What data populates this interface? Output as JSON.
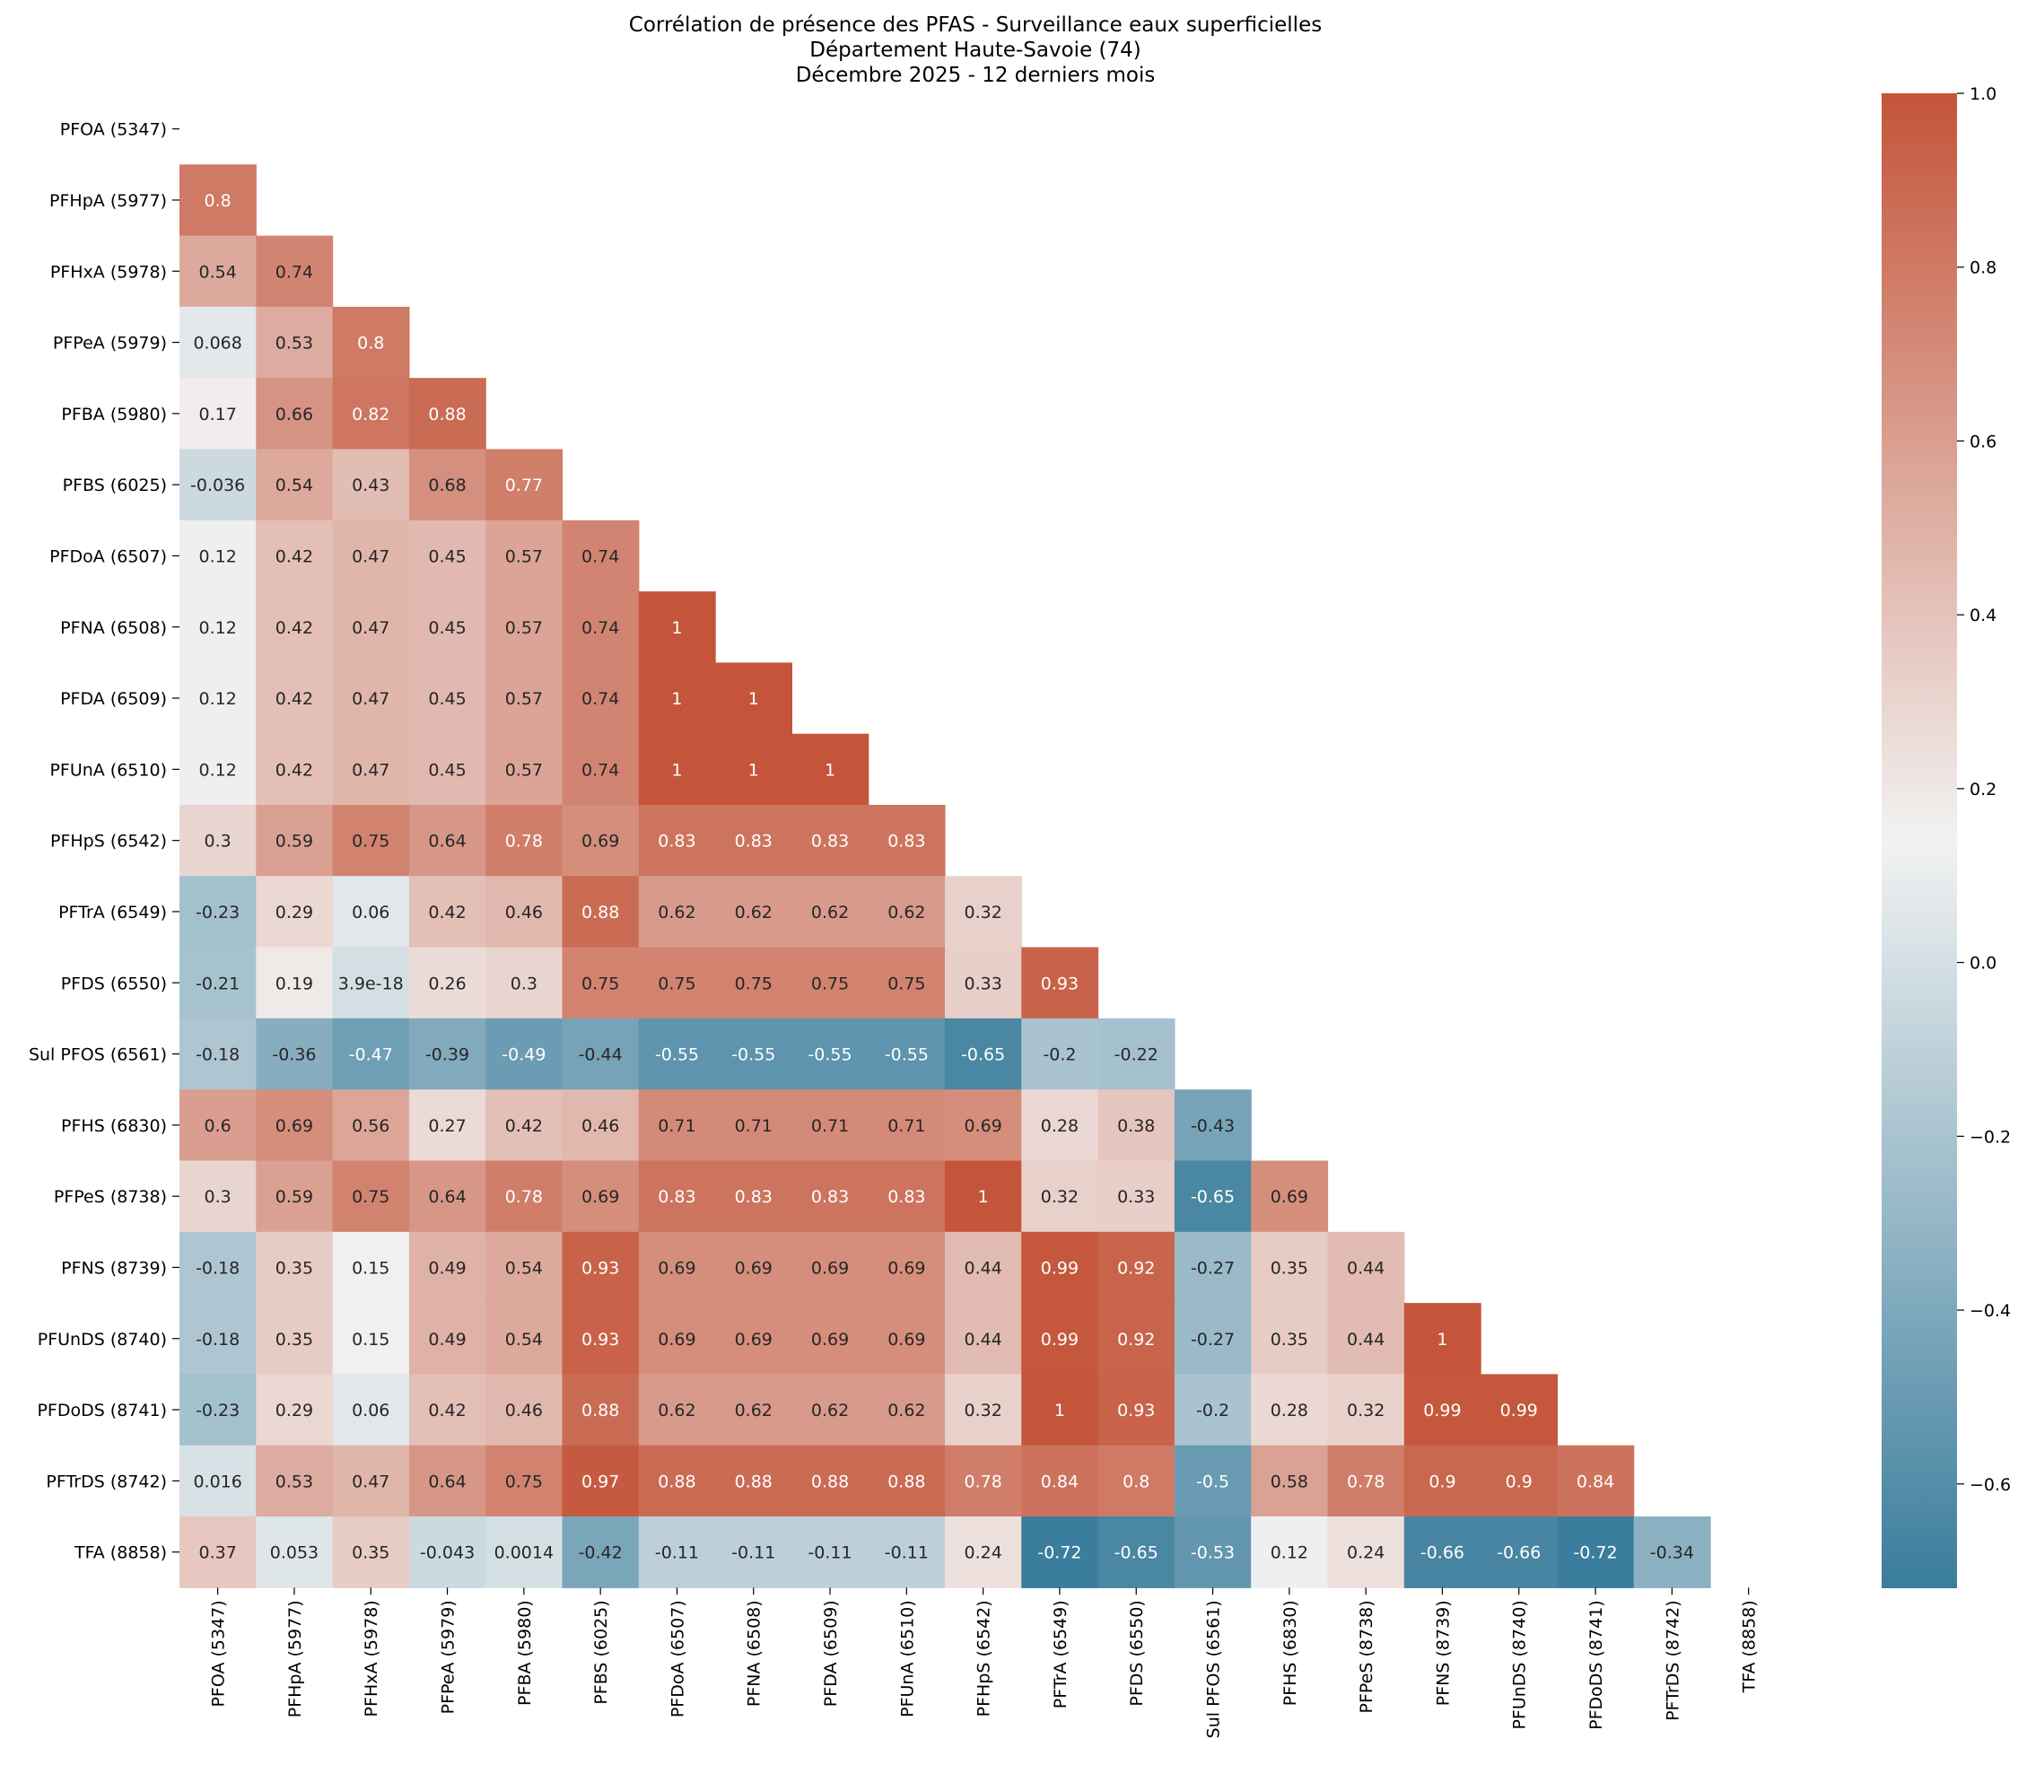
{
  "chart_data": {
    "type": "heatmap",
    "title": [
      "Corrélation de présence des PFAS - Surveillance eaux superficielles",
      "Département Haute-Savoie (74)",
      "Décembre 2025 - 12 derniers mois"
    ],
    "labels": [
      "PFOA (5347)",
      "PFHpA (5977)",
      "PFHxA (5978)",
      "PFPeA (5979)",
      "PFBA (5980)",
      "PFBS (6025)",
      "PFDoA (6507)",
      "PFNA (6508)",
      "PFDA (6509)",
      "PFUnA (6510)",
      "PFHpS (6542)",
      "PFTrA (6549)",
      "PFDS (6550)",
      "Sul PFOS (6561)",
      "PFHS (6830)",
      "PFPeS (8738)",
      "PFNS (8739)",
      "PFUnDS (8740)",
      "PFDoDS (8741)",
      "PFTrDS (8742)",
      "TFA (8858)"
    ],
    "mask": "upper triangle including diagonal",
    "rows": [
      {
        "label": "PFHpA (5977)",
        "values": [
          0.8
        ],
        "text": [
          "0.8"
        ]
      },
      {
        "label": "PFHxA (5978)",
        "values": [
          0.54,
          0.74
        ],
        "text": [
          "0.54",
          "0.74"
        ]
      },
      {
        "label": "PFPeA (5979)",
        "values": [
          0.068,
          0.53,
          0.8
        ],
        "text": [
          "0.068",
          "0.53",
          "0.8"
        ]
      },
      {
        "label": "PFBA (5980)",
        "values": [
          0.17,
          0.66,
          0.82,
          0.88
        ],
        "text": [
          "0.17",
          "0.66",
          "0.82",
          "0.88"
        ]
      },
      {
        "label": "PFBS (6025)",
        "values": [
          -0.036,
          0.54,
          0.43,
          0.68,
          0.77
        ],
        "text": [
          "-0.036",
          "0.54",
          "0.43",
          "0.68",
          "0.77"
        ]
      },
      {
        "label": "PFDoA (6507)",
        "values": [
          0.12,
          0.42,
          0.47,
          0.45,
          0.57,
          0.74
        ],
        "text": [
          "0.12",
          "0.42",
          "0.47",
          "0.45",
          "0.57",
          "0.74"
        ]
      },
      {
        "label": "PFNA (6508)",
        "values": [
          0.12,
          0.42,
          0.47,
          0.45,
          0.57,
          0.74,
          1
        ],
        "text": [
          "0.12",
          "0.42",
          "0.47",
          "0.45",
          "0.57",
          "0.74",
          "1"
        ]
      },
      {
        "label": "PFDA (6509)",
        "values": [
          0.12,
          0.42,
          0.47,
          0.45,
          0.57,
          0.74,
          1,
          1
        ],
        "text": [
          "0.12",
          "0.42",
          "0.47",
          "0.45",
          "0.57",
          "0.74",
          "1",
          "1"
        ]
      },
      {
        "label": "PFUnA (6510)",
        "values": [
          0.12,
          0.42,
          0.47,
          0.45,
          0.57,
          0.74,
          1,
          1,
          1
        ],
        "text": [
          "0.12",
          "0.42",
          "0.47",
          "0.45",
          "0.57",
          "0.74",
          "1",
          "1",
          "1"
        ]
      },
      {
        "label": "PFHpS (6542)",
        "values": [
          0.3,
          0.59,
          0.75,
          0.64,
          0.78,
          0.69,
          0.83,
          0.83,
          0.83,
          0.83
        ],
        "text": [
          "0.3",
          "0.59",
          "0.75",
          "0.64",
          "0.78",
          "0.69",
          "0.83",
          "0.83",
          "0.83",
          "0.83"
        ]
      },
      {
        "label": "PFTrA (6549)",
        "values": [
          -0.23,
          0.29,
          0.06,
          0.42,
          0.46,
          0.88,
          0.62,
          0.62,
          0.62,
          0.62,
          0.32
        ],
        "text": [
          "-0.23",
          "0.29",
          "0.06",
          "0.42",
          "0.46",
          "0.88",
          "0.62",
          "0.62",
          "0.62",
          "0.62",
          "0.32"
        ]
      },
      {
        "label": "PFDS (6550)",
        "values": [
          -0.21,
          0.19,
          3.9e-18,
          0.26,
          0.3,
          0.75,
          0.75,
          0.75,
          0.75,
          0.75,
          0.33,
          0.93
        ],
        "text": [
          "-0.21",
          "0.19",
          "3.9e-18",
          "0.26",
          "0.3",
          "0.75",
          "0.75",
          "0.75",
          "0.75",
          "0.75",
          "0.33",
          "0.93"
        ]
      },
      {
        "label": "Sul PFOS (6561)",
        "values": [
          -0.18,
          -0.36,
          -0.47,
          -0.39,
          -0.49,
          -0.44,
          -0.55,
          -0.55,
          -0.55,
          -0.55,
          -0.65,
          -0.2,
          -0.22
        ],
        "text": [
          "-0.18",
          "-0.36",
          "-0.47",
          "-0.39",
          "-0.49",
          "-0.44",
          "-0.55",
          "-0.55",
          "-0.55",
          "-0.55",
          "-0.65",
          "-0.2",
          "-0.22"
        ]
      },
      {
        "label": "PFHS (6830)",
        "values": [
          0.6,
          0.69,
          0.56,
          0.27,
          0.42,
          0.46,
          0.71,
          0.71,
          0.71,
          0.71,
          0.69,
          0.28,
          0.38,
          -0.43
        ],
        "text": [
          "0.6",
          "0.69",
          "0.56",
          "0.27",
          "0.42",
          "0.46",
          "0.71",
          "0.71",
          "0.71",
          "0.71",
          "0.69",
          "0.28",
          "0.38",
          "-0.43"
        ]
      },
      {
        "label": "PFPeS (8738)",
        "values": [
          0.3,
          0.59,
          0.75,
          0.64,
          0.78,
          0.69,
          0.83,
          0.83,
          0.83,
          0.83,
          1,
          0.32,
          0.33,
          -0.65,
          0.69
        ],
        "text": [
          "0.3",
          "0.59",
          "0.75",
          "0.64",
          "0.78",
          "0.69",
          "0.83",
          "0.83",
          "0.83",
          "0.83",
          "1",
          "0.32",
          "0.33",
          "-0.65",
          "0.69"
        ]
      },
      {
        "label": "PFNS (8739)",
        "values": [
          -0.18,
          0.35,
          0.15,
          0.49,
          0.54,
          0.93,
          0.69,
          0.69,
          0.69,
          0.69,
          0.44,
          0.99,
          0.92,
          -0.27,
          0.35,
          0.44
        ],
        "text": [
          "-0.18",
          "0.35",
          "0.15",
          "0.49",
          "0.54",
          "0.93",
          "0.69",
          "0.69",
          "0.69",
          "0.69",
          "0.44",
          "0.99",
          "0.92",
          "-0.27",
          "0.35",
          "0.44"
        ]
      },
      {
        "label": "PFUnDS (8740)",
        "values": [
          -0.18,
          0.35,
          0.15,
          0.49,
          0.54,
          0.93,
          0.69,
          0.69,
          0.69,
          0.69,
          0.44,
          0.99,
          0.92,
          -0.27,
          0.35,
          0.44,
          1
        ],
        "text": [
          "-0.18",
          "0.35",
          "0.15",
          "0.49",
          "0.54",
          "0.93",
          "0.69",
          "0.69",
          "0.69",
          "0.69",
          "0.44",
          "0.99",
          "0.92",
          "-0.27",
          "0.35",
          "0.44",
          "1"
        ]
      },
      {
        "label": "PFDoDS (8741)",
        "values": [
          -0.23,
          0.29,
          0.06,
          0.42,
          0.46,
          0.88,
          0.62,
          0.62,
          0.62,
          0.62,
          0.32,
          1,
          0.93,
          -0.2,
          0.28,
          0.32,
          0.99,
          0.99
        ],
        "text": [
          "-0.23",
          "0.29",
          "0.06",
          "0.42",
          "0.46",
          "0.88",
          "0.62",
          "0.62",
          "0.62",
          "0.62",
          "0.32",
          "1",
          "0.93",
          "-0.2",
          "0.28",
          "0.32",
          "0.99",
          "0.99"
        ]
      },
      {
        "label": "PFTrDS (8742)",
        "values": [
          0.016,
          0.53,
          0.47,
          0.64,
          0.75,
          0.97,
          0.88,
          0.88,
          0.88,
          0.88,
          0.78,
          0.84,
          0.8,
          -0.5,
          0.58,
          0.78,
          0.9,
          0.9,
          0.84
        ],
        "text": [
          "0.016",
          "0.53",
          "0.47",
          "0.64",
          "0.75",
          "0.97",
          "0.88",
          "0.88",
          "0.88",
          "0.88",
          "0.78",
          "0.84",
          "0.8",
          "-0.5",
          "0.58",
          "0.78",
          "0.9",
          "0.9",
          "0.84"
        ]
      },
      {
        "label": "TFA (8858)",
        "values": [
          0.37,
          0.053,
          0.35,
          -0.043,
          0.0014,
          -0.42,
          -0.11,
          -0.11,
          -0.11,
          -0.11,
          0.24,
          -0.72,
          -0.65,
          -0.53,
          0.12,
          0.24,
          -0.66,
          -0.66,
          -0.72,
          -0.34
        ],
        "text": [
          "0.37",
          "0.053",
          "0.35",
          "-0.043",
          "0.0014",
          "-0.42",
          "-0.11",
          "-0.11",
          "-0.11",
          "-0.11",
          "0.24",
          "-0.72",
          "-0.65",
          "-0.53",
          "0.12",
          "0.24",
          "-0.66",
          "-0.66",
          "-0.72",
          "-0.34"
        ]
      }
    ],
    "colorbar": {
      "vmin": -0.72,
      "vmax": 1.0,
      "ticks": [
        1.0,
        0.8,
        0.6,
        0.4,
        0.2,
        0.0,
        -0.2,
        -0.4,
        -0.6
      ],
      "tick_labels": [
        "1.0",
        "0.8",
        "0.6",
        "0.4",
        "0.2",
        "0.0",
        "−0.2",
        "−0.4",
        "−0.6"
      ],
      "palette": {
        "low": "#3a7d9c",
        "mid": "#f2f2f2",
        "high": "#c4553a"
      }
    }
  }
}
